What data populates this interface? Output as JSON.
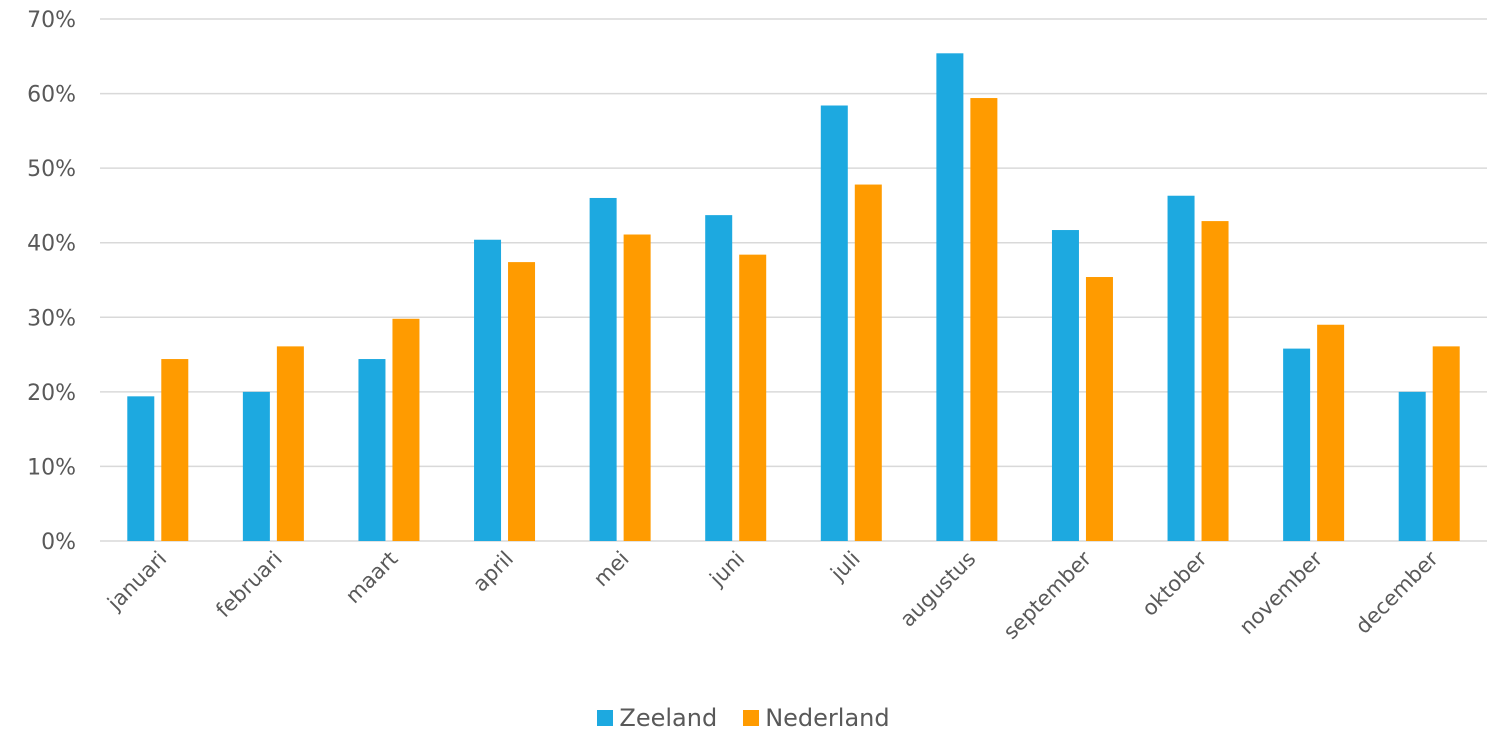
{
  "chart_data": {
    "type": "bar",
    "categories": [
      "januari",
      "februari",
      "maart",
      "april",
      "mei",
      "juni",
      "juli",
      "augustus",
      "september",
      "oktober",
      "november",
      "december"
    ],
    "series": [
      {
        "name": "Zeeland",
        "color": "#1DA9E0",
        "values": [
          19.4,
          20.0,
          24.4,
          40.4,
          46.0,
          43.7,
          58.4,
          65.4,
          41.7,
          46.3,
          25.8,
          20.0
        ]
      },
      {
        "name": "Nederland",
        "color": "#FF9B00",
        "values": [
          24.4,
          26.1,
          29.8,
          37.4,
          41.1,
          38.4,
          47.8,
          59.4,
          35.4,
          42.9,
          29.0,
          26.1
        ]
      }
    ],
    "ylim": [
      0,
      70
    ],
    "yticks": [
      "0%",
      "10%",
      "20%",
      "30%",
      "40%",
      "50%",
      "60%",
      "70%"
    ],
    "grid": true,
    "legend_position": "bottom"
  }
}
